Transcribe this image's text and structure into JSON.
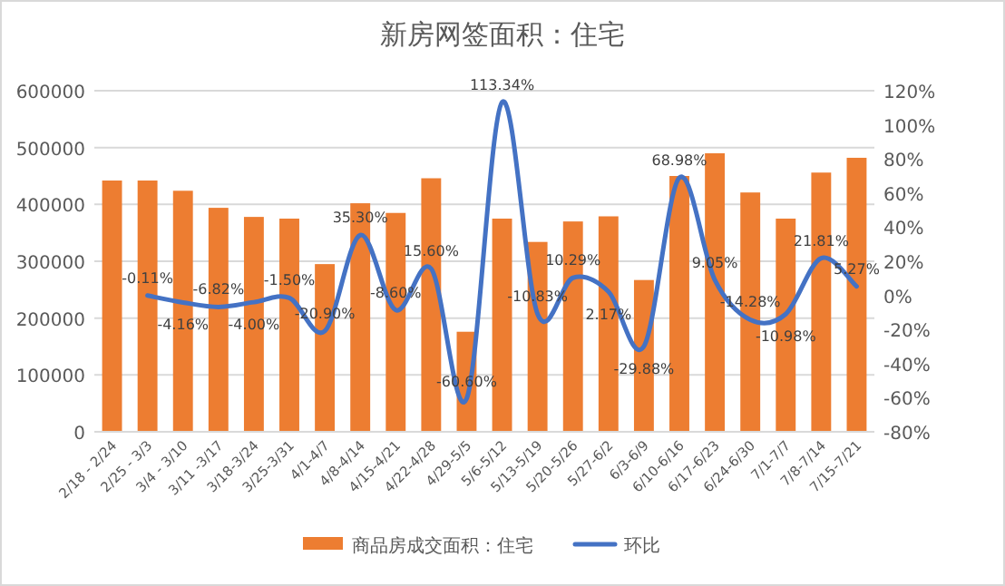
{
  "chart_data": {
    "type": "bar",
    "title": "新房网签面积：住宅",
    "categories": [
      "2/18 - 2/24",
      "2/25 - 3/3",
      "3/4 - 3/10",
      "3/11 -3/17",
      "3/18-3/24",
      "3/25-3/31",
      "4/1-4/7",
      "4/8-4/14",
      "4/15-4/21",
      "4/22-4/28",
      "4/29-5/5",
      "5/6-5/12",
      "5/13-5/19",
      "5/20-5/26",
      "5/27-6/2",
      "6/3-6/9",
      "6/10-6/16",
      "6/17-6/23",
      "6/24-6/30",
      "7/1-7/7",
      "7/8-7/14",
      "7/15-7/21"
    ],
    "series": [
      {
        "name": "商品房成交面积：住宅",
        "color": "#ed7d31",
        "values": [
          442000,
          442000,
          424000,
          394000,
          378000,
          375000,
          295000,
          402000,
          385000,
          446000,
          176000,
          375000,
          334000,
          370000,
          379000,
          267000,
          450000,
          490000,
          421000,
          375000,
          456000,
          482000
        ]
      },
      {
        "name": "环比",
        "type": "line",
        "axis": "y2",
        "color": "#4472c4",
        "values": [
          null,
          -0.11,
          -4.16,
          -6.82,
          -4.0,
          -1.5,
          -20.9,
          35.3,
          -8.6,
          15.6,
          -60.6,
          113.34,
          -10.83,
          10.29,
          2.17,
          -29.88,
          68.98,
          9.05,
          -14.28,
          -10.98,
          21.81,
          5.27
        ],
        "value_labels": [
          null,
          "-0.11%",
          "-4.16%",
          "-6.82%",
          "-4.00%",
          "-1.50%",
          "-20.90%",
          "35.30%",
          "-8.60%",
          "15.60%",
          "-60.60%",
          "113.34%",
          "-10.83%",
          "10.29%",
          "2.17%",
          "-29.88%",
          "68.98%",
          "9.05%",
          "-14.28%",
          "-10.98%",
          "21.81%",
          "5.27%"
        ]
      }
    ],
    "ylim": [
      0,
      600000
    ],
    "yticks": [
      0,
      100000,
      200000,
      300000,
      400000,
      500000,
      600000
    ],
    "y2lim": [
      -80,
      120
    ],
    "y2ticks": [
      {
        "value": -80,
        "label": "-80%"
      },
      {
        "value": -60,
        "label": "-60%"
      },
      {
        "value": -40,
        "label": "-40%"
      },
      {
        "value": -20,
        "label": "-20%"
      },
      {
        "value": 0,
        "label": "0%"
      },
      {
        "value": 20,
        "label": "20%"
      },
      {
        "value": 40,
        "label": "40%"
      },
      {
        "value": 60,
        "label": "60%"
      },
      {
        "value": 80,
        "label": "80%"
      },
      {
        "value": 100,
        "label": "100%"
      },
      {
        "value": 120,
        "label": "120%"
      }
    ],
    "grid": "y",
    "legend": "bottom"
  }
}
